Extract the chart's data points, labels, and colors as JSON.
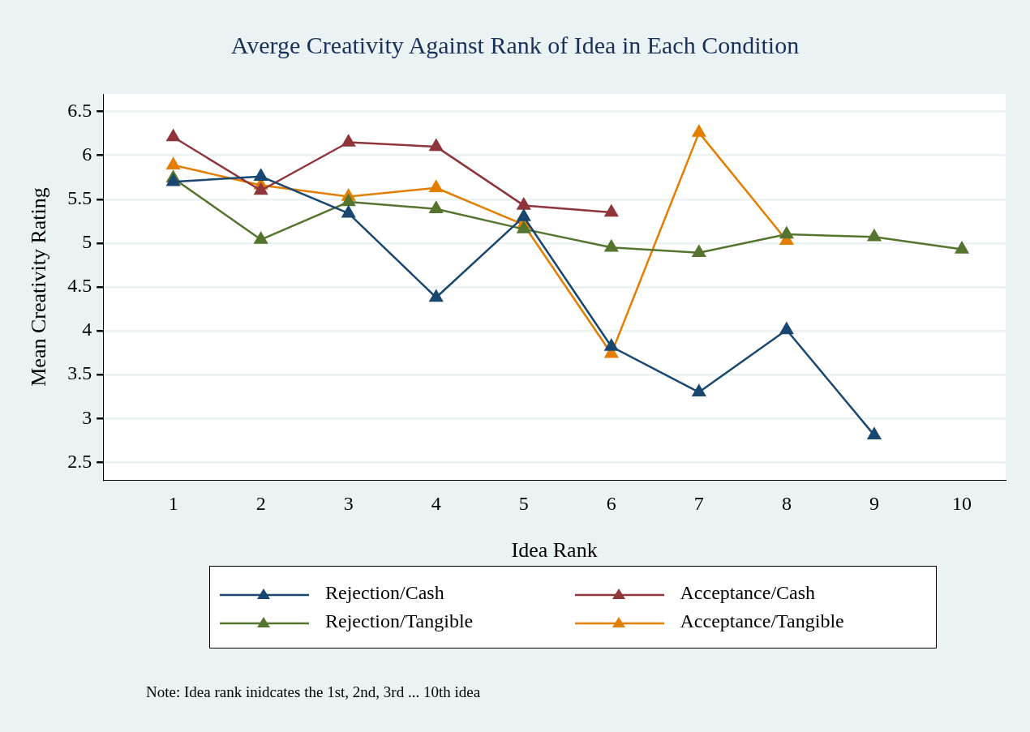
{
  "chart_data": {
    "type": "line",
    "title": "Averge Creativity Against Rank of Idea in Each Condition",
    "xlabel": "Idea Rank",
    "ylabel": "Mean Creativity Rating",
    "x": [
      1,
      2,
      3,
      4,
      5,
      6,
      7,
      8,
      9,
      10
    ],
    "series": [
      {
        "name": "Rejection/Cash",
        "color": "#1a476f",
        "values": [
          5.7,
          5.76,
          5.34,
          4.38,
          5.3,
          3.82,
          3.3,
          4.01,
          2.81,
          null
        ]
      },
      {
        "name": "Acceptance/Cash",
        "color": "#90353b",
        "values": [
          6.21,
          5.6,
          6.15,
          6.1,
          5.43,
          5.35,
          null,
          null,
          null,
          null
        ]
      },
      {
        "name": "Rejection/Tangible",
        "color": "#55752f",
        "values": [
          5.74,
          5.04,
          5.47,
          5.39,
          5.16,
          4.95,
          4.89,
          5.1,
          5.07,
          4.93
        ]
      },
      {
        "name": "Acceptance/Tangible",
        "color": "#e37e00",
        "values": [
          5.89,
          5.66,
          5.53,
          5.63,
          5.21,
          3.74,
          6.26,
          5.03,
          null,
          null
        ]
      }
    ],
    "xlim": [
      0.2,
      10.5
    ],
    "xticks": [
      1,
      2,
      3,
      4,
      5,
      6,
      7,
      8,
      9,
      10
    ],
    "ylim": [
      2.3,
      6.7
    ],
    "yticks": [
      2.5,
      3,
      3.5,
      4,
      4.5,
      5,
      5.5,
      6,
      6.5
    ],
    "grid": "y",
    "legend": "bottom",
    "marker": "triangle",
    "line_style": "solid",
    "annotations": [
      "Note: Idea rank inidcates the 1st, 2nd, 3rd ... 10th idea"
    ]
  }
}
